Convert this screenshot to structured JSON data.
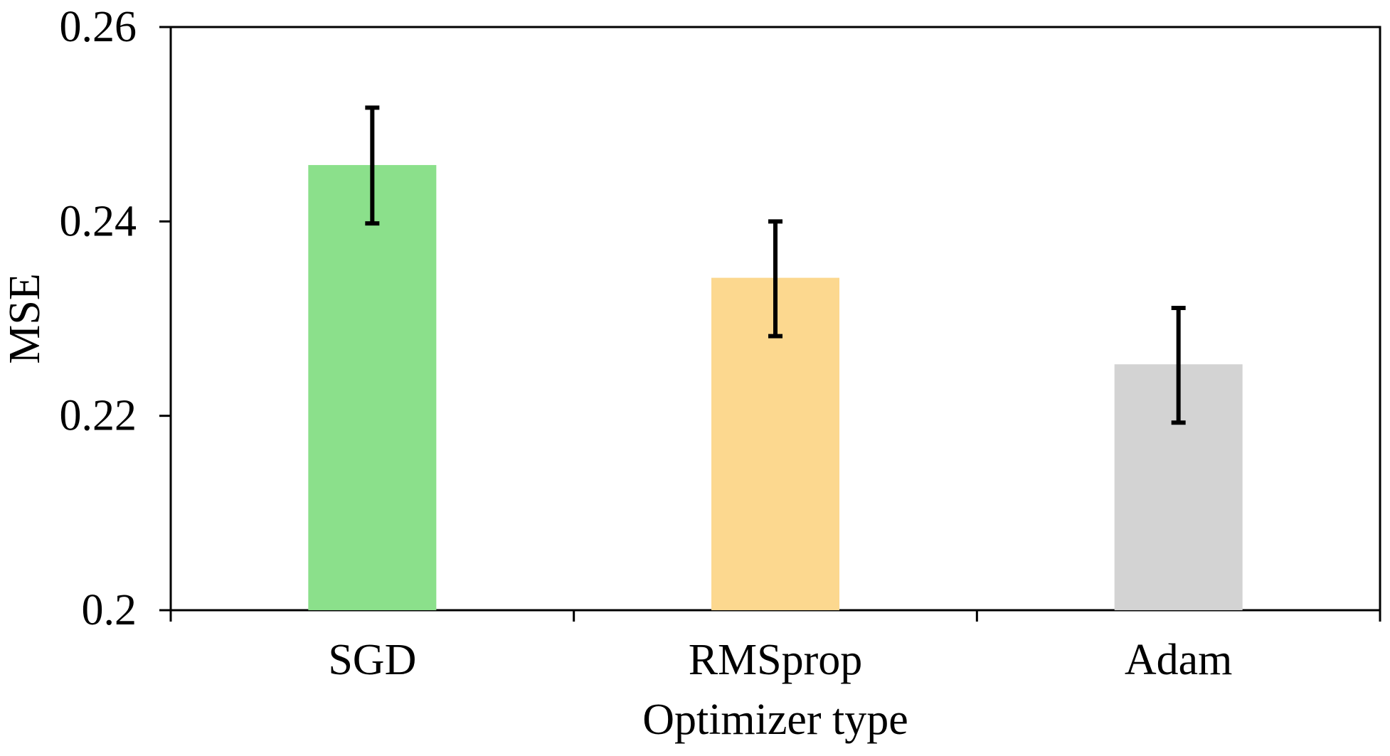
{
  "chart_data": {
    "type": "bar",
    "title": "",
    "xlabel": "Optimizer type",
    "ylabel": "MSE",
    "categories": [
      "SGD",
      "RMSprop",
      "Adam"
    ],
    "values": [
      0.2458,
      0.2342,
      0.2253
    ],
    "error_low": [
      0.2398,
      0.2282,
      0.2193
    ],
    "error_high": [
      0.2517,
      0.24,
      0.2311
    ],
    "colors": [
      "#8be08b",
      "#fcd88f",
      "#d3d3d3"
    ],
    "ylim": [
      0.2,
      0.26
    ],
    "yticks": [
      0.2,
      0.22,
      0.24,
      0.26
    ],
    "ytick_labels": [
      "0.2",
      "0.22",
      "0.24",
      "0.26"
    ],
    "grid": false,
    "legend": "none"
  }
}
